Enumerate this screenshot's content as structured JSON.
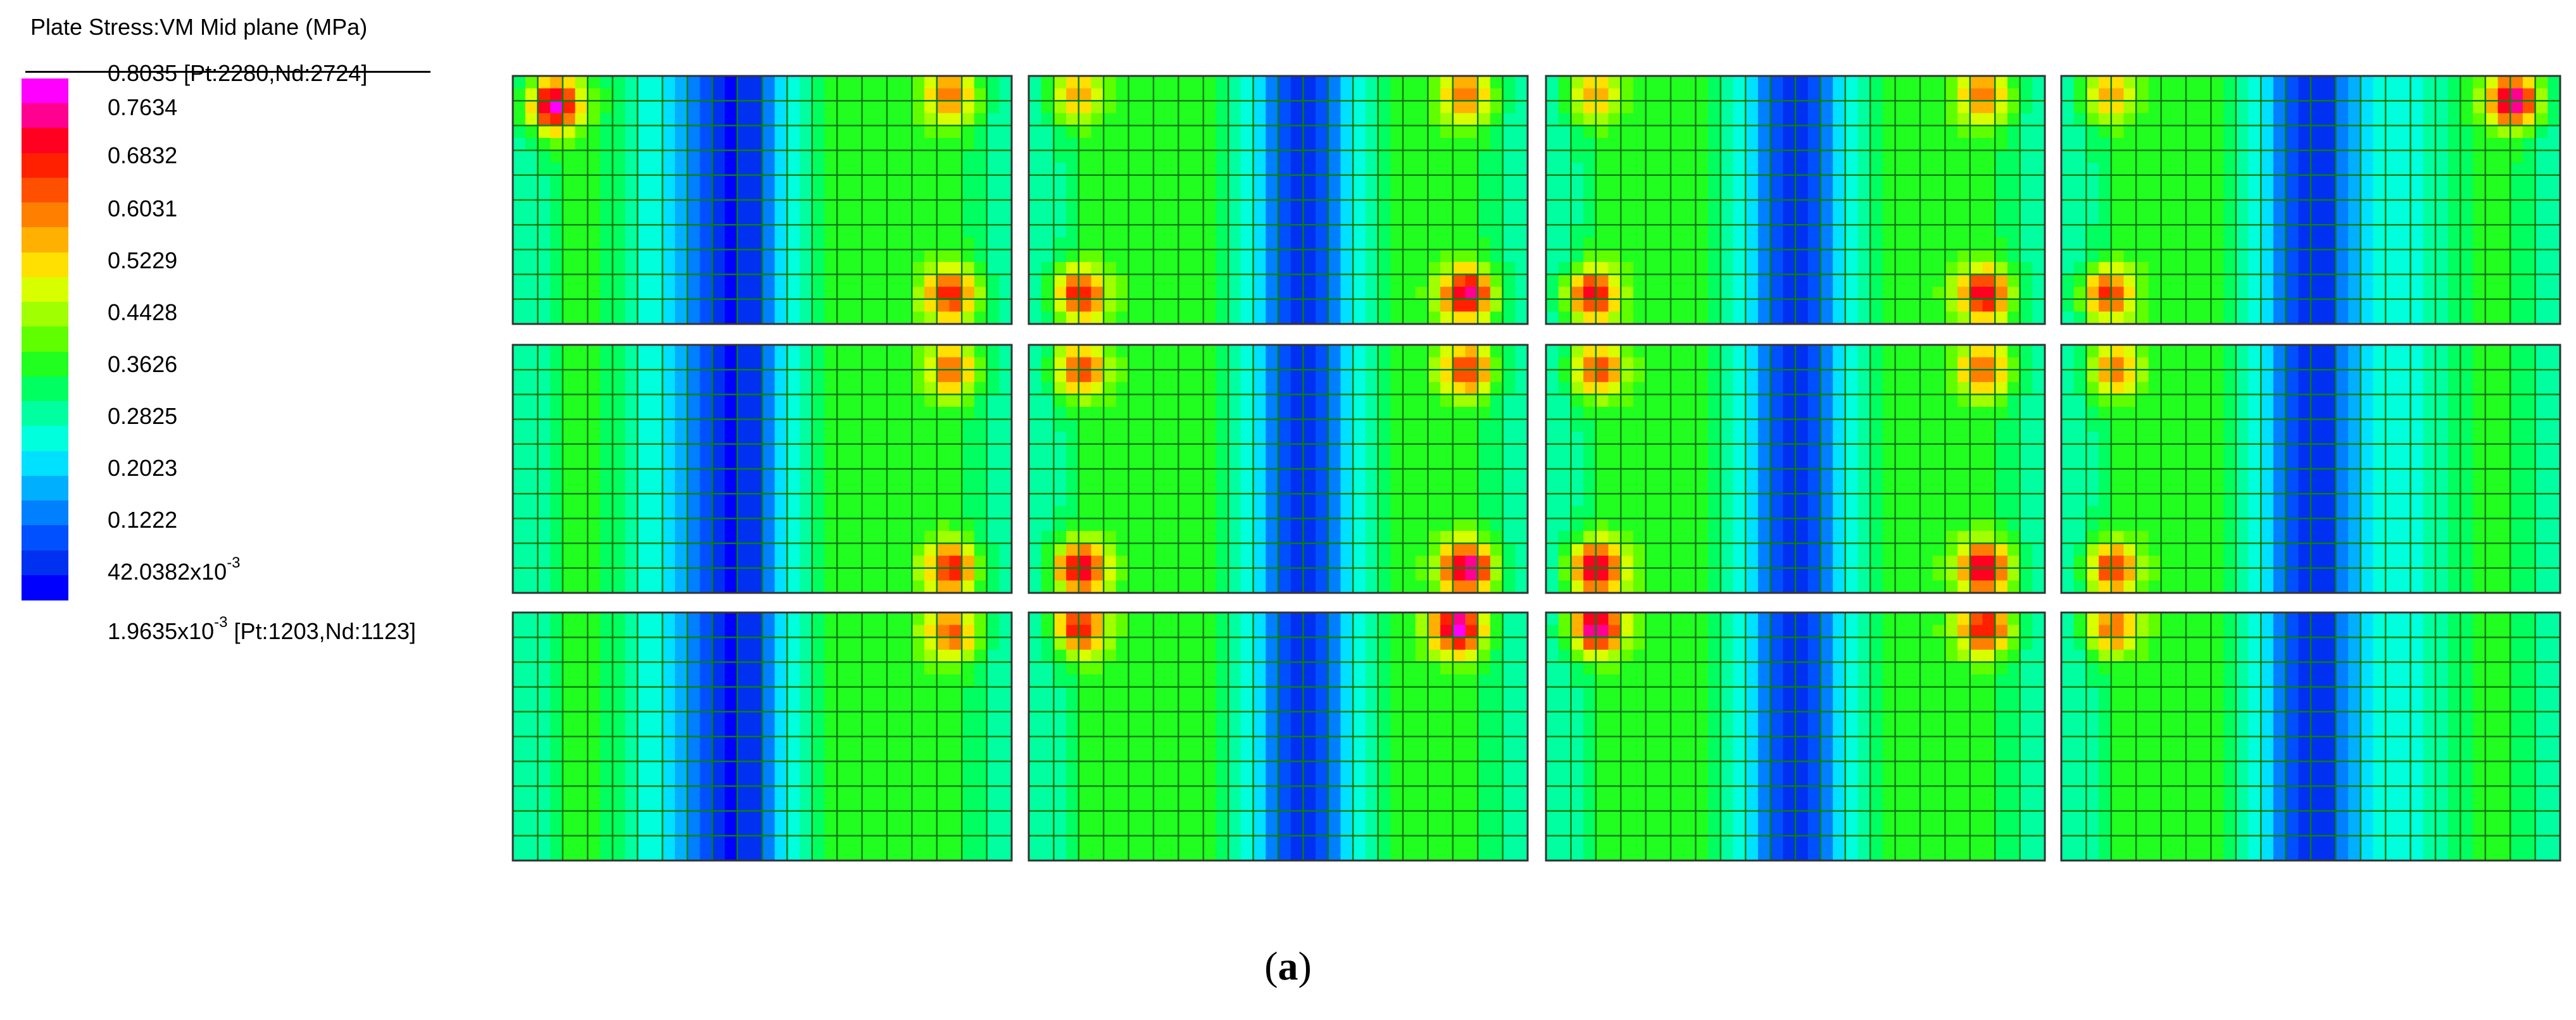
{
  "legend": {
    "title": "Plate Stress:VM Mid plane (MPa)",
    "max_label": "0.8035 [Pt:2280,Nd:2724]",
    "tick_labels": [
      "0.7634",
      "0.6832",
      "0.6031",
      "0.5229",
      "0.4428",
      "0.3626",
      "0.2825",
      "0.2023",
      "0.1222"
    ],
    "low_label_mantissa": "42.0382x10",
    "low_label_exp": "-3",
    "min_label_mantissa": "1.9635x10",
    "min_label_exp": "-3",
    "min_label_suffix": "[Pt:1203,Nd:1123]",
    "colors": [
      "#ff00ff",
      "#ff0090",
      "#ff0020",
      "#ff2000",
      "#ff5000",
      "#ff8000",
      "#ffb000",
      "#ffe000",
      "#d8ff00",
      "#a0ff00",
      "#60ff00",
      "#20ff20",
      "#00ff60",
      "#00ffa0",
      "#00ffdc",
      "#00e0ff",
      "#00b0ff",
      "#0080ff",
      "#0050ff",
      "#0030f0",
      "#0000ff"
    ]
  },
  "caption": "(a)",
  "panels": {
    "rows": 3,
    "cols": 4,
    "grid_columns": 20,
    "grid_rows": 10,
    "mesh_color": "#0a7f10",
    "base_color": "#20ff20"
  }
}
